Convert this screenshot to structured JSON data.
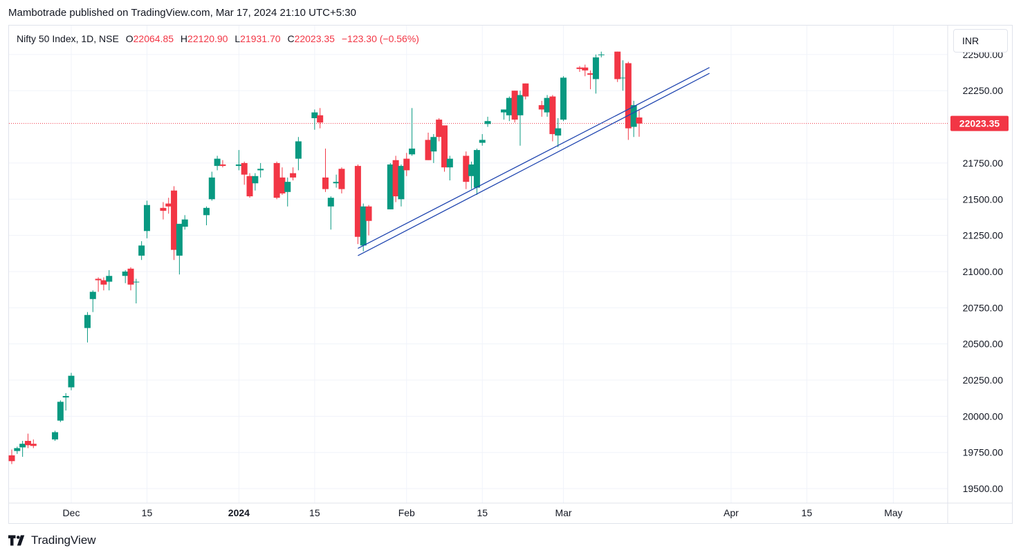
{
  "header": {
    "published_text": "Mambotrade published on TradingView.com, Mar 17, 2024 21:10 UTC+5:30"
  },
  "legend": {
    "symbol": "Nifty 50 Index, 1D, NSE",
    "open_label": "O",
    "open_value": "22064.85",
    "high_label": "H",
    "high_value": "22120.90",
    "low_label": "L",
    "low_value": "21931.70",
    "close_label": "C",
    "close_value": "22023.35",
    "change_text": "−123.30 (−0.56%)"
  },
  "currency_button": {
    "label": "INR"
  },
  "footer": {
    "brand": "TradingView"
  },
  "colors": {
    "up": "#089981",
    "down": "#f23645",
    "trendline": "#2046b0",
    "grid": "#f0f3fa",
    "text": "#131722",
    "price_line": "#f23645"
  },
  "chart_data": {
    "type": "candlestick",
    "title": "Nifty 50 Index, 1D, NSE",
    "ylim": [
      19400,
      22700
    ],
    "y_ticks": [
      22500,
      22250,
      21750,
      21500,
      21250,
      21000,
      20750,
      20500,
      20250,
      20000,
      19750,
      19500
    ],
    "y_tick_labels": [
      "22500.00",
      "22250.00",
      "21750.00",
      "21500.00",
      "21250.00",
      "21000.00",
      "20750.00",
      "20500.00",
      "20250.00",
      "20000.00",
      "19750.00",
      "19500.00"
    ],
    "x_ticks": [
      {
        "date": "2023-12-01",
        "label": "Dec",
        "bold": false
      },
      {
        "date": "2023-12-15",
        "label": "15",
        "bold": false
      },
      {
        "date": "2024-01-01",
        "label": "2024",
        "bold": true
      },
      {
        "date": "2024-01-15",
        "label": "15",
        "bold": false
      },
      {
        "date": "2024-02-01",
        "label": "Feb",
        "bold": false
      },
      {
        "date": "2024-02-15",
        "label": "15",
        "bold": false
      },
      {
        "date": "2024-03-01",
        "label": "Mar",
        "bold": false
      },
      {
        "date": "2024-04-01",
        "label": "Apr",
        "bold": false
      },
      {
        "date": "2024-04-15",
        "label": "15",
        "bold": false
      },
      {
        "date": "2024-05-01",
        "label": "May",
        "bold": false
      }
    ],
    "last_price": 22023.35,
    "last_price_label": "22023.35",
    "candles": [
      {
        "date": "2023-11-20",
        "o": 19730,
        "h": 19770,
        "l": 19670,
        "c": 19690
      },
      {
        "date": "2023-11-21",
        "o": 19760,
        "h": 19790,
        "l": 19740,
        "c": 19780
      },
      {
        "date": "2023-11-22",
        "o": 19785,
        "h": 19830,
        "l": 19720,
        "c": 19810
      },
      {
        "date": "2023-11-23",
        "o": 19830,
        "h": 19880,
        "l": 19780,
        "c": 19800
      },
      {
        "date": "2023-11-24",
        "o": 19810,
        "h": 19840,
        "l": 19780,
        "c": 19795
      },
      {
        "date": "2023-11-28",
        "o": 19840,
        "h": 19900,
        "l": 19830,
        "c": 19890
      },
      {
        "date": "2023-11-29",
        "o": 19970,
        "h": 20110,
        "l": 19960,
        "c": 20100
      },
      {
        "date": "2023-11-30",
        "o": 20130,
        "h": 20160,
        "l": 20040,
        "c": 20140
      },
      {
        "date": "2023-12-01",
        "o": 20200,
        "h": 20300,
        "l": 20180,
        "c": 20280
      },
      {
        "date": "2023-12-04",
        "o": 20610,
        "h": 20720,
        "l": 20510,
        "c": 20700
      },
      {
        "date": "2023-12-05",
        "o": 20810,
        "h": 20870,
        "l": 20720,
        "c": 20860
      },
      {
        "date": "2023-12-06",
        "o": 20950,
        "h": 20960,
        "l": 20860,
        "c": 20940
      },
      {
        "date": "2023-12-07",
        "o": 20940,
        "h": 20960,
        "l": 20870,
        "c": 20910
      },
      {
        "date": "2023-12-08",
        "o": 20930,
        "h": 21010,
        "l": 20870,
        "c": 20970
      },
      {
        "date": "2023-12-11",
        "o": 20970,
        "h": 21010,
        "l": 20920,
        "c": 21000
      },
      {
        "date": "2023-12-12",
        "o": 21020,
        "h": 21030,
        "l": 20870,
        "c": 20910
      },
      {
        "date": "2023-12-13",
        "o": 20930,
        "h": 20950,
        "l": 20780,
        "c": 20930
      },
      {
        "date": "2023-12-14",
        "o": 21110,
        "h": 21210,
        "l": 21080,
        "c": 21180
      },
      {
        "date": "2023-12-15",
        "o": 21280,
        "h": 21490,
        "l": 21230,
        "c": 21460
      },
      {
        "date": "2023-12-18",
        "o": 21440,
        "h": 21480,
        "l": 21360,
        "c": 21420
      },
      {
        "date": "2023-12-19",
        "o": 21470,
        "h": 21510,
        "l": 21400,
        "c": 21450
      },
      {
        "date": "2023-12-20",
        "o": 21560,
        "h": 21590,
        "l": 21080,
        "c": 21150
      },
      {
        "date": "2023-12-21",
        "o": 21110,
        "h": 21320,
        "l": 20980,
        "c": 21330
      },
      {
        "date": "2023-12-22",
        "o": 21310,
        "h": 21390,
        "l": 21290,
        "c": 21360
      },
      {
        "date": "2023-12-26",
        "o": 21390,
        "h": 21450,
        "l": 21320,
        "c": 21440
      },
      {
        "date": "2023-12-27",
        "o": 21500,
        "h": 21690,
        "l": 21490,
        "c": 21650
      },
      {
        "date": "2023-12-28",
        "o": 21730,
        "h": 21800,
        "l": 21700,
        "c": 21780
      },
      {
        "date": "2023-12-29",
        "o": 21740,
        "h": 21770,
        "l": 21720,
        "c": 21730
      },
      {
        "date": "2024-01-01",
        "o": 21730,
        "h": 21840,
        "l": 21700,
        "c": 21740
      },
      {
        "date": "2024-01-02",
        "o": 21750,
        "h": 21760,
        "l": 21600,
        "c": 21670
      },
      {
        "date": "2024-01-03",
        "o": 21660,
        "h": 21680,
        "l": 21510,
        "c": 21520
      },
      {
        "date": "2024-01-04",
        "o": 21610,
        "h": 21680,
        "l": 21560,
        "c": 21660
      },
      {
        "date": "2024-01-05",
        "o": 21700,
        "h": 21750,
        "l": 21650,
        "c": 21710
      },
      {
        "date": "2024-01-08",
        "o": 21750,
        "h": 21760,
        "l": 21500,
        "c": 21510
      },
      {
        "date": "2024-01-09",
        "o": 21650,
        "h": 21720,
        "l": 21530,
        "c": 21540
      },
      {
        "date": "2024-01-10",
        "o": 21550,
        "h": 21650,
        "l": 21450,
        "c": 21620
      },
      {
        "date": "2024-01-11",
        "o": 21680,
        "h": 21720,
        "l": 21630,
        "c": 21650
      },
      {
        "date": "2024-01-12",
        "o": 21780,
        "h": 21930,
        "l": 21700,
        "c": 21900
      },
      {
        "date": "2024-01-15",
        "o": 22060,
        "h": 22120,
        "l": 21980,
        "c": 22100
      },
      {
        "date": "2024-01-16",
        "o": 22080,
        "h": 22130,
        "l": 21990,
        "c": 22030
      },
      {
        "date": "2024-01-17",
        "o": 21650,
        "h": 21850,
        "l": 21550,
        "c": 21570
      },
      {
        "date": "2024-01-18",
        "o": 21450,
        "h": 21520,
        "l": 21290,
        "c": 21510
      },
      {
        "date": "2024-01-19",
        "o": 21610,
        "h": 21670,
        "l": 21580,
        "c": 21620
      },
      {
        "date": "2024-01-20",
        "o": 21710,
        "h": 21720,
        "l": 21540,
        "c": 21570
      },
      {
        "date": "2024-01-23",
        "o": 21730,
        "h": 21740,
        "l": 21190,
        "c": 21240
      },
      {
        "date": "2024-01-24",
        "o": 21180,
        "h": 21470,
        "l": 21140,
        "c": 21450
      },
      {
        "date": "2024-01-25",
        "o": 21450,
        "h": 21460,
        "l": 21250,
        "c": 21350
      },
      {
        "date": "2024-01-29",
        "o": 21430,
        "h": 21750,
        "l": 21430,
        "c": 21740
      },
      {
        "date": "2024-01-30",
        "o": 21770,
        "h": 21800,
        "l": 21480,
        "c": 21520
      },
      {
        "date": "2024-01-31",
        "o": 21500,
        "h": 21740,
        "l": 21450,
        "c": 21730
      },
      {
        "date": "2024-02-01",
        "o": 21780,
        "h": 21820,
        "l": 21660,
        "c": 21700
      },
      {
        "date": "2024-02-02",
        "o": 21810,
        "h": 22130,
        "l": 21800,
        "c": 21850
      },
      {
        "date": "2024-02-05",
        "o": 21910,
        "h": 21960,
        "l": 21770,
        "c": 21770
      },
      {
        "date": "2024-02-06",
        "o": 21830,
        "h": 21950,
        "l": 21750,
        "c": 21930
      },
      {
        "date": "2024-02-07",
        "o": 22050,
        "h": 22060,
        "l": 21900,
        "c": 21930
      },
      {
        "date": "2024-02-08",
        "o": 22010,
        "h": 22010,
        "l": 21690,
        "c": 21720
      },
      {
        "date": "2024-02-09",
        "o": 21720,
        "h": 21800,
        "l": 21630,
        "c": 21780
      },
      {
        "date": "2024-02-12",
        "o": 21800,
        "h": 21830,
        "l": 21570,
        "c": 21620
      },
      {
        "date": "2024-02-13",
        "o": 21660,
        "h": 21760,
        "l": 21570,
        "c": 21740
      },
      {
        "date": "2024-02-14",
        "o": 21580,
        "h": 21850,
        "l": 21530,
        "c": 21840
      },
      {
        "date": "2024-02-15",
        "o": 21890,
        "h": 21950,
        "l": 21870,
        "c": 21910
      },
      {
        "date": "2024-02-16",
        "o": 22020,
        "h": 22070,
        "l": 22000,
        "c": 22040
      },
      {
        "date": "2024-02-19",
        "o": 22100,
        "h": 22120,
        "l": 22050,
        "c": 22120
      },
      {
        "date": "2024-02-20",
        "o": 22080,
        "h": 22210,
        "l": 22040,
        "c": 22200
      },
      {
        "date": "2024-02-21",
        "o": 22250,
        "h": 22250,
        "l": 22030,
        "c": 22050
      },
      {
        "date": "2024-02-22",
        "o": 22080,
        "h": 22250,
        "l": 21870,
        "c": 22220
      },
      {
        "date": "2024-02-23",
        "o": 22300,
        "h": 22300,
        "l": 22190,
        "c": 22210
      },
      {
        "date": "2024-02-26",
        "o": 22150,
        "h": 22180,
        "l": 22070,
        "c": 22120
      },
      {
        "date": "2024-02-27",
        "o": 22100,
        "h": 22220,
        "l": 22070,
        "c": 22200
      },
      {
        "date": "2024-02-28",
        "o": 22210,
        "h": 22220,
        "l": 21900,
        "c": 21950
      },
      {
        "date": "2024-02-29",
        "o": 21940,
        "h": 22060,
        "l": 21860,
        "c": 21990
      },
      {
        "date": "2024-03-01",
        "o": 22050,
        "h": 22350,
        "l": 22040,
        "c": 22340
      },
      {
        "date": "2024-03-04",
        "o": 22410,
        "h": 22420,
        "l": 22380,
        "c": 22400
      },
      {
        "date": "2024-03-05",
        "o": 22410,
        "h": 22430,
        "l": 22350,
        "c": 22390
      },
      {
        "date": "2024-03-06",
        "o": 22370,
        "h": 22390,
        "l": 22260,
        "c": 22360
      },
      {
        "date": "2024-03-07",
        "o": 22330,
        "h": 22500,
        "l": 22230,
        "c": 22480
      },
      {
        "date": "2024-03-08",
        "o": 22500,
        "h": 22520,
        "l": 22480,
        "c": 22500
      },
      {
        "date": "2024-03-11",
        "o": 22520,
        "h": 22520,
        "l": 22310,
        "c": 22330
      },
      {
        "date": "2024-03-12",
        "o": 22340,
        "h": 22460,
        "l": 22250,
        "c": 22340
      },
      {
        "date": "2024-03-13",
        "o": 22440,
        "h": 22450,
        "l": 21910,
        "c": 21990
      },
      {
        "date": "2024-03-14",
        "o": 22000,
        "h": 22180,
        "l": 21930,
        "c": 22150
      },
      {
        "date": "2024-03-15",
        "o": 22064.85,
        "h": 22120.9,
        "l": 21931.7,
        "c": 22023.35
      }
    ],
    "trendlines": [
      {
        "start": {
          "date": "2024-01-23",
          "price": 21160
        },
        "end": {
          "date": "2024-03-28",
          "price": 22410
        }
      },
      {
        "start": {
          "date": "2024-01-23",
          "price": 21110
        },
        "end": {
          "date": "2024-03-28",
          "price": 22370
        }
      }
    ]
  }
}
